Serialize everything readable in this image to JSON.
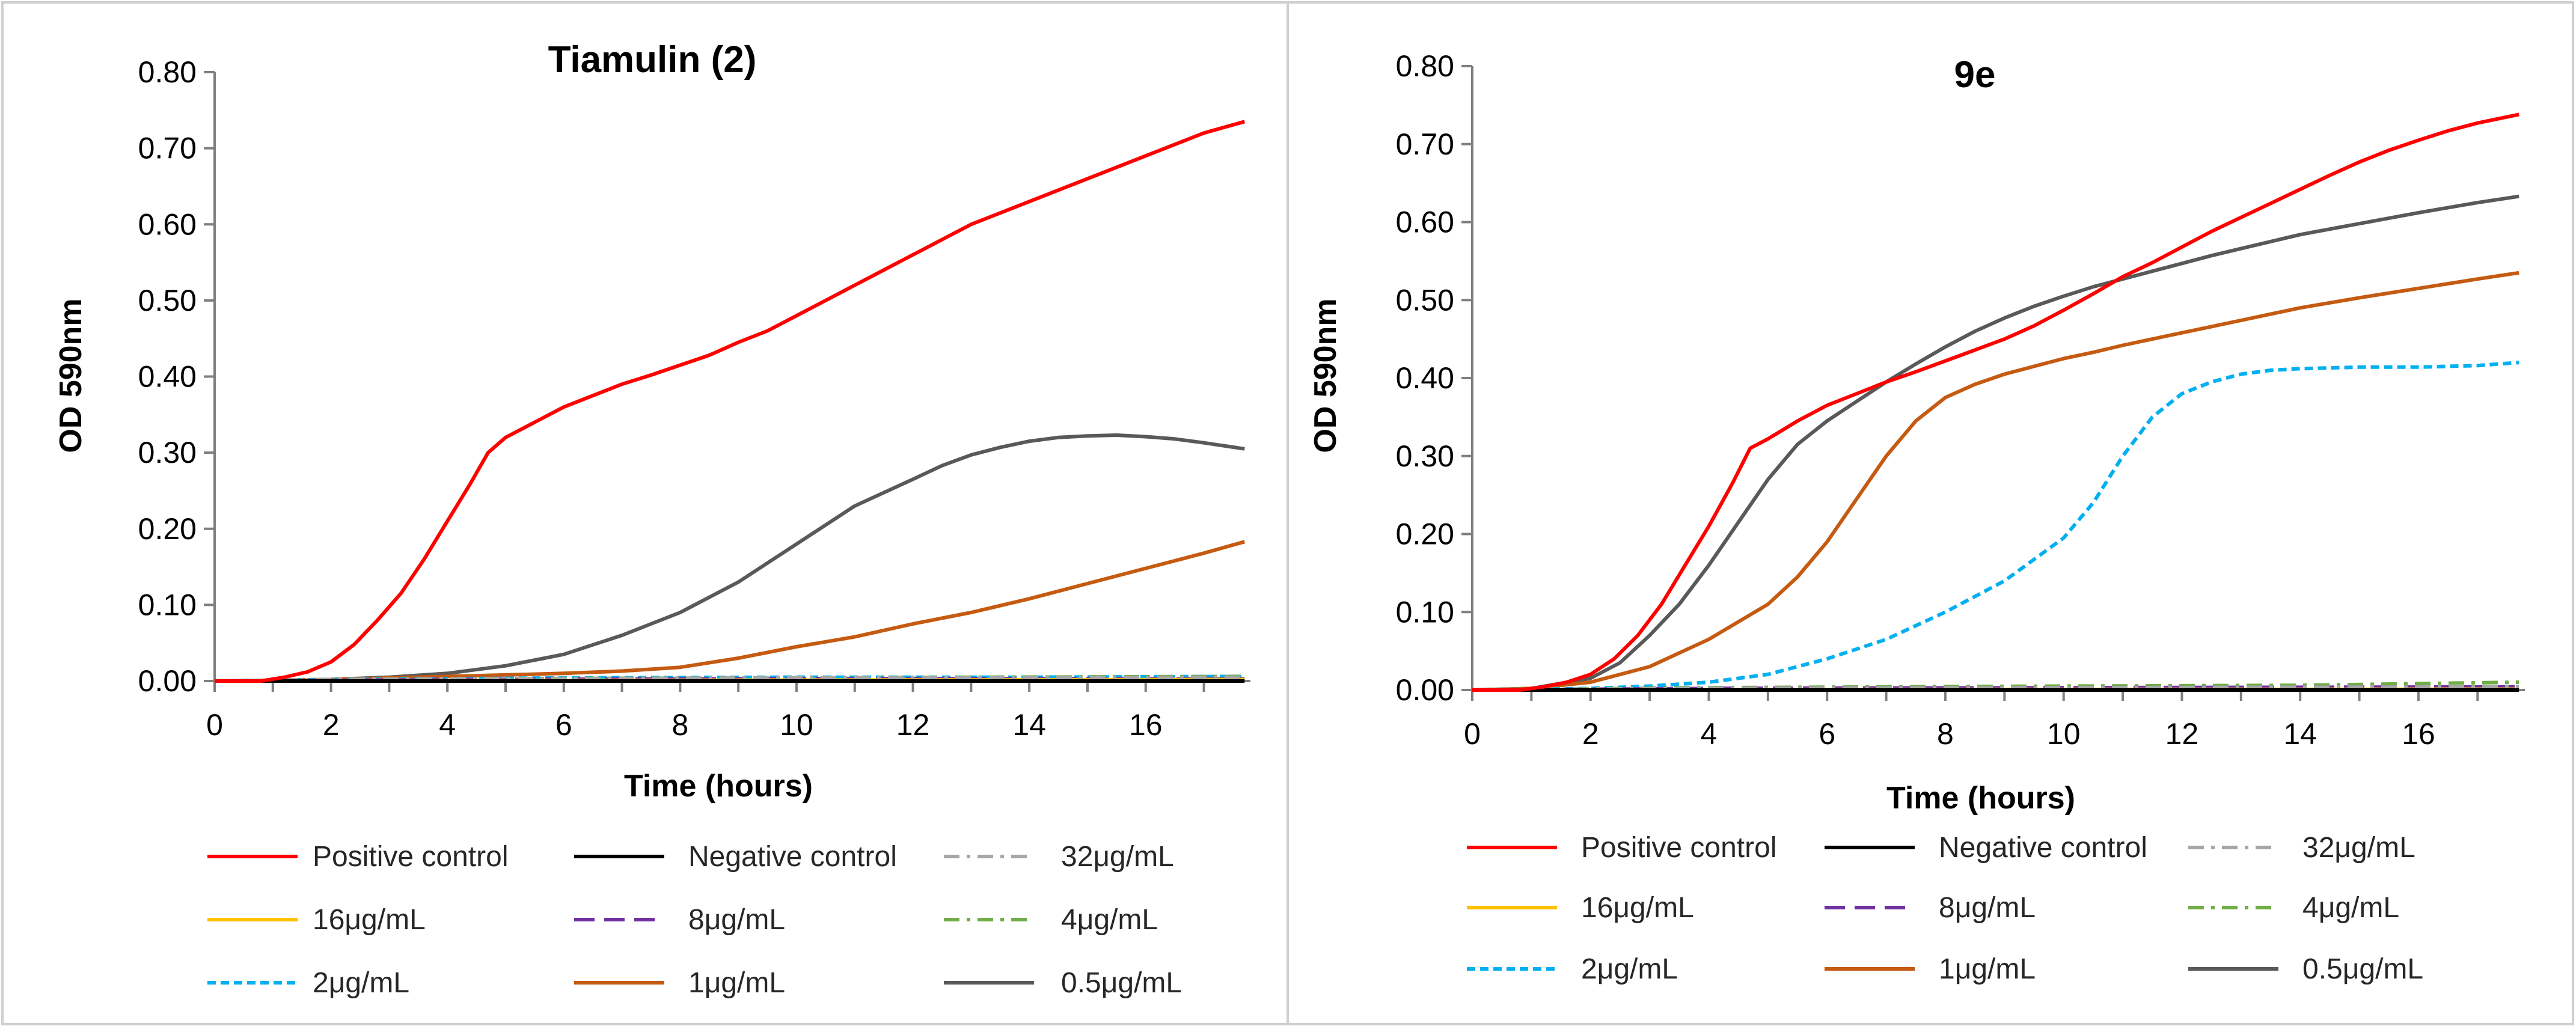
{
  "chart_data": [
    {
      "type": "line",
      "title": "Tiamulin (2)",
      "xlabel": "Time (hours)",
      "ylabel": "OD 590nm",
      "xlim": [
        0,
        17.8
      ],
      "ylim": [
        0,
        0.8
      ],
      "xticks": [
        "0",
        "2",
        "4",
        "6",
        "8",
        "10",
        "12",
        "14",
        "16"
      ],
      "yticks": [
        "0.00",
        "0.10",
        "0.20",
        "0.30",
        "0.40",
        "0.50",
        "0.60",
        "0.70",
        "0.80"
      ],
      "grid": false,
      "legend_position": "bottom",
      "series": [
        {
          "name": "Positive control",
          "color": "#ff0000",
          "dash": "solid",
          "points": [
            [
              0,
              0
            ],
            [
              0.8,
              0
            ],
            [
              1.2,
              0.005
            ],
            [
              1.6,
              0.012
            ],
            [
              2,
              0.025
            ],
            [
              2.4,
              0.048
            ],
            [
              2.8,
              0.08
            ],
            [
              3.2,
              0.115
            ],
            [
              3.6,
              0.16
            ],
            [
              4,
              0.21
            ],
            [
              4.4,
              0.26
            ],
            [
              4.7,
              0.3
            ],
            [
              5,
              0.32
            ],
            [
              5.5,
              0.34
            ],
            [
              6,
              0.36
            ],
            [
              6.5,
              0.375
            ],
            [
              7,
              0.39
            ],
            [
              7.5,
              0.402
            ],
            [
              8,
              0.415
            ],
            [
              8.5,
              0.428
            ],
            [
              9,
              0.445
            ],
            [
              9.5,
              0.46
            ],
            [
              10,
              0.48
            ],
            [
              10.5,
              0.5
            ],
            [
              11,
              0.52
            ],
            [
              11.5,
              0.54
            ],
            [
              12,
              0.56
            ],
            [
              12.5,
              0.58
            ],
            [
              13,
              0.6
            ],
            [
              13.5,
              0.615
            ],
            [
              14,
              0.63
            ],
            [
              14.5,
              0.645
            ],
            [
              15,
              0.66
            ],
            [
              15.5,
              0.675
            ],
            [
              16,
              0.69
            ],
            [
              16.5,
              0.705
            ],
            [
              17,
              0.72
            ],
            [
              17.7,
              0.735
            ]
          ]
        },
        {
          "name": "Negative control",
          "color": "#000000",
          "dash": "solid",
          "points": [
            [
              0,
              0
            ],
            [
              17.7,
              0
            ]
          ]
        },
        {
          "name": "32μg/mL",
          "color": "#a6a6a6",
          "dash": "dashdot",
          "points": [
            [
              0,
              0
            ],
            [
              2,
              0.002
            ],
            [
              6,
              0.003
            ],
            [
              10,
              0.004
            ],
            [
              14,
              0.004
            ],
            [
              17.7,
              0.005
            ]
          ]
        },
        {
          "name": "16μg/mL",
          "color": "#ffc000",
          "dash": "solid",
          "points": [
            [
              0,
              0
            ],
            [
              17.7,
              0.002
            ]
          ]
        },
        {
          "name": "8μg/mL",
          "color": "#7030a0",
          "dash": "longdash",
          "points": [
            [
              0,
              0
            ],
            [
              4,
              0.002
            ],
            [
              10,
              0.003
            ],
            [
              17.7,
              0.003
            ]
          ]
        },
        {
          "name": "4μg/mL",
          "color": "#70ad47",
          "dash": "dashdot",
          "points": [
            [
              0,
              0
            ],
            [
              4,
              0.003
            ],
            [
              10,
              0.004
            ],
            [
              17.7,
              0.006
            ]
          ]
        },
        {
          "name": "2μg/mL",
          "color": "#00b0f0",
          "dash": "shortdash",
          "points": [
            [
              0,
              0
            ],
            [
              2,
              0.002
            ],
            [
              6,
              0.004
            ],
            [
              10,
              0.005
            ],
            [
              14,
              0.005
            ],
            [
              17.7,
              0.006
            ]
          ]
        },
        {
          "name": "1μg/mL",
          "color": "#c55a11",
          "dash": "solid",
          "points": [
            [
              0,
              0
            ],
            [
              2,
              0.002
            ],
            [
              3,
              0.004
            ],
            [
              4,
              0.006
            ],
            [
              5,
              0.008
            ],
            [
              6,
              0.01
            ],
            [
              7,
              0.013
            ],
            [
              8,
              0.018
            ],
            [
              9,
              0.03
            ],
            [
              10,
              0.045
            ],
            [
              11,
              0.058
            ],
            [
              12,
              0.075
            ],
            [
              13,
              0.09
            ],
            [
              14,
              0.108
            ],
            [
              15,
              0.128
            ],
            [
              16,
              0.148
            ],
            [
              17,
              0.168
            ],
            [
              17.7,
              0.183
            ]
          ]
        },
        {
          "name": "0.5μg/mL",
          "color": "#595959",
          "dash": "solid",
          "points": [
            [
              0,
              0
            ],
            [
              2,
              0.002
            ],
            [
              3,
              0.005
            ],
            [
              4,
              0.01
            ],
            [
              5,
              0.02
            ],
            [
              6,
              0.035
            ],
            [
              7,
              0.06
            ],
            [
              8,
              0.09
            ],
            [
              9,
              0.13
            ],
            [
              10,
              0.18
            ],
            [
              11,
              0.23
            ],
            [
              12,
              0.265
            ],
            [
              12.5,
              0.283
            ],
            [
              13,
              0.297
            ],
            [
              13.5,
              0.307
            ],
            [
              14,
              0.315
            ],
            [
              14.5,
              0.32
            ],
            [
              15,
              0.322
            ],
            [
              15.5,
              0.323
            ],
            [
              16,
              0.321
            ],
            [
              16.5,
              0.318
            ],
            [
              17,
              0.313
            ],
            [
              17.7,
              0.305
            ]
          ]
        }
      ]
    },
    {
      "type": "line",
      "title": "9e",
      "xlabel": "Time (hours)",
      "ylabel": "OD 590nm",
      "xlim": [
        0,
        17.8
      ],
      "ylim": [
        0,
        0.8
      ],
      "xticks": [
        "0",
        "2",
        "4",
        "6",
        "8",
        "10",
        "12",
        "14",
        "16"
      ],
      "yticks": [
        "0.00",
        "0.10",
        "0.20",
        "0.30",
        "0.40",
        "0.50",
        "0.60",
        "0.70",
        "0.80"
      ],
      "grid": false,
      "legend_position": "bottom",
      "series": [
        {
          "name": "Positive control",
          "color": "#ff0000",
          "dash": "solid",
          "points": [
            [
              0,
              0
            ],
            [
              0.8,
              0
            ],
            [
              1.2,
              0.004
            ],
            [
              1.6,
              0.01
            ],
            [
              2,
              0.02
            ],
            [
              2.4,
              0.04
            ],
            [
              2.8,
              0.07
            ],
            [
              3.2,
              0.11
            ],
            [
              3.6,
              0.16
            ],
            [
              4,
              0.21
            ],
            [
              4.4,
              0.265
            ],
            [
              4.7,
              0.31
            ],
            [
              5,
              0.322
            ],
            [
              5.5,
              0.345
            ],
            [
              6,
              0.365
            ],
            [
              6.5,
              0.38
            ],
            [
              7,
              0.395
            ],
            [
              7.5,
              0.408
            ],
            [
              8,
              0.422
            ],
            [
              8.5,
              0.436
            ],
            [
              9,
              0.45
            ],
            [
              9.5,
              0.467
            ],
            [
              10,
              0.487
            ],
            [
              10.5,
              0.508
            ],
            [
              11,
              0.53
            ],
            [
              11.5,
              0.548
            ],
            [
              12,
              0.568
            ],
            [
              12.5,
              0.588
            ],
            [
              13,
              0.606
            ],
            [
              13.5,
              0.624
            ],
            [
              14,
              0.642
            ],
            [
              14.5,
              0.66
            ],
            [
              15,
              0.677
            ],
            [
              15.5,
              0.692
            ],
            [
              16,
              0.705
            ],
            [
              16.5,
              0.717
            ],
            [
              17,
              0.727
            ],
            [
              17.7,
              0.738
            ]
          ]
        },
        {
          "name": "Negative control",
          "color": "#000000",
          "dash": "solid",
          "points": [
            [
              0,
              0
            ],
            [
              17.7,
              0
            ]
          ]
        },
        {
          "name": "32μg/mL",
          "color": "#a6a6a6",
          "dash": "dashdot",
          "points": [
            [
              0,
              0
            ],
            [
              4,
              0.002
            ],
            [
              10,
              0.003
            ],
            [
              17.7,
              0.004
            ]
          ]
        },
        {
          "name": "16μg/mL",
          "color": "#ffc000",
          "dash": "solid",
          "points": [
            [
              0,
              0
            ],
            [
              17.7,
              0.001
            ]
          ]
        },
        {
          "name": "8μg/mL",
          "color": "#7030a0",
          "dash": "longdash",
          "points": [
            [
              0,
              0
            ],
            [
              4,
              0.002
            ],
            [
              10,
              0.003
            ],
            [
              17.7,
              0.004
            ]
          ]
        },
        {
          "name": "4μg/mL",
          "color": "#70ad47",
          "dash": "dashdot",
          "points": [
            [
              0,
              0
            ],
            [
              4,
              0.003
            ],
            [
              10,
              0.005
            ],
            [
              14,
              0.006
            ],
            [
              17.7,
              0.01
            ]
          ]
        },
        {
          "name": "2μg/mL",
          "color": "#00b0f0",
          "dash": "shortdash",
          "points": [
            [
              0,
              0
            ],
            [
              2,
              0.002
            ],
            [
              3,
              0.005
            ],
            [
              4,
              0.01
            ],
            [
              5,
              0.02
            ],
            [
              6,
              0.04
            ],
            [
              7,
              0.065
            ],
            [
              8,
              0.1
            ],
            [
              9,
              0.14
            ],
            [
              10,
              0.195
            ],
            [
              10.5,
              0.24
            ],
            [
              11,
              0.3
            ],
            [
              11.5,
              0.35
            ],
            [
              12,
              0.38
            ],
            [
              12.5,
              0.395
            ],
            [
              13,
              0.405
            ],
            [
              13.5,
              0.41
            ],
            [
              14,
              0.412
            ],
            [
              15,
              0.414
            ],
            [
              16,
              0.414
            ],
            [
              17,
              0.416
            ],
            [
              17.7,
              0.42
            ]
          ]
        },
        {
          "name": "1μg/mL",
          "color": "#c55a11",
          "dash": "solid",
          "points": [
            [
              0,
              0
            ],
            [
              1,
              0.002
            ],
            [
              2,
              0.01
            ],
            [
              3,
              0.03
            ],
            [
              4,
              0.065
            ],
            [
              5,
              0.11
            ],
            [
              5.5,
              0.145
            ],
            [
              6,
              0.19
            ],
            [
              6.5,
              0.245
            ],
            [
              7,
              0.3
            ],
            [
              7.5,
              0.345
            ],
            [
              8,
              0.375
            ],
            [
              8.5,
              0.392
            ],
            [
              9,
              0.405
            ],
            [
              9.5,
              0.415
            ],
            [
              10,
              0.425
            ],
            [
              10.5,
              0.433
            ],
            [
              11,
              0.442
            ],
            [
              11.5,
              0.45
            ],
            [
              12,
              0.458
            ],
            [
              12.5,
              0.466
            ],
            [
              13,
              0.474
            ],
            [
              13.5,
              0.482
            ],
            [
              14,
              0.49
            ],
            [
              15,
              0.503
            ],
            [
              16,
              0.515
            ],
            [
              17,
              0.527
            ],
            [
              17.7,
              0.535
            ]
          ]
        },
        {
          "name": "0.5μg/mL",
          "color": "#595959",
          "dash": "solid",
          "points": [
            [
              0,
              0
            ],
            [
              1,
              0.002
            ],
            [
              2,
              0.015
            ],
            [
              2.5,
              0.035
            ],
            [
              3,
              0.07
            ],
            [
              3.5,
              0.11
            ],
            [
              4,
              0.16
            ],
            [
              4.5,
              0.215
            ],
            [
              5,
              0.27
            ],
            [
              5.5,
              0.315
            ],
            [
              6,
              0.345
            ],
            [
              6.5,
              0.37
            ],
            [
              7,
              0.395
            ],
            [
              7.5,
              0.418
            ],
            [
              8,
              0.44
            ],
            [
              8.5,
              0.46
            ],
            [
              9,
              0.477
            ],
            [
              9.5,
              0.492
            ],
            [
              10,
              0.505
            ],
            [
              10.5,
              0.517
            ],
            [
              11,
              0.527
            ],
            [
              11.5,
              0.537
            ],
            [
              12,
              0.547
            ],
            [
              12.5,
              0.557
            ],
            [
              13,
              0.566
            ],
            [
              13.5,
              0.575
            ],
            [
              14,
              0.584
            ],
            [
              15,
              0.598
            ],
            [
              16,
              0.612
            ],
            [
              17,
              0.625
            ],
            [
              17.7,
              0.633
            ]
          ]
        }
      ]
    }
  ]
}
